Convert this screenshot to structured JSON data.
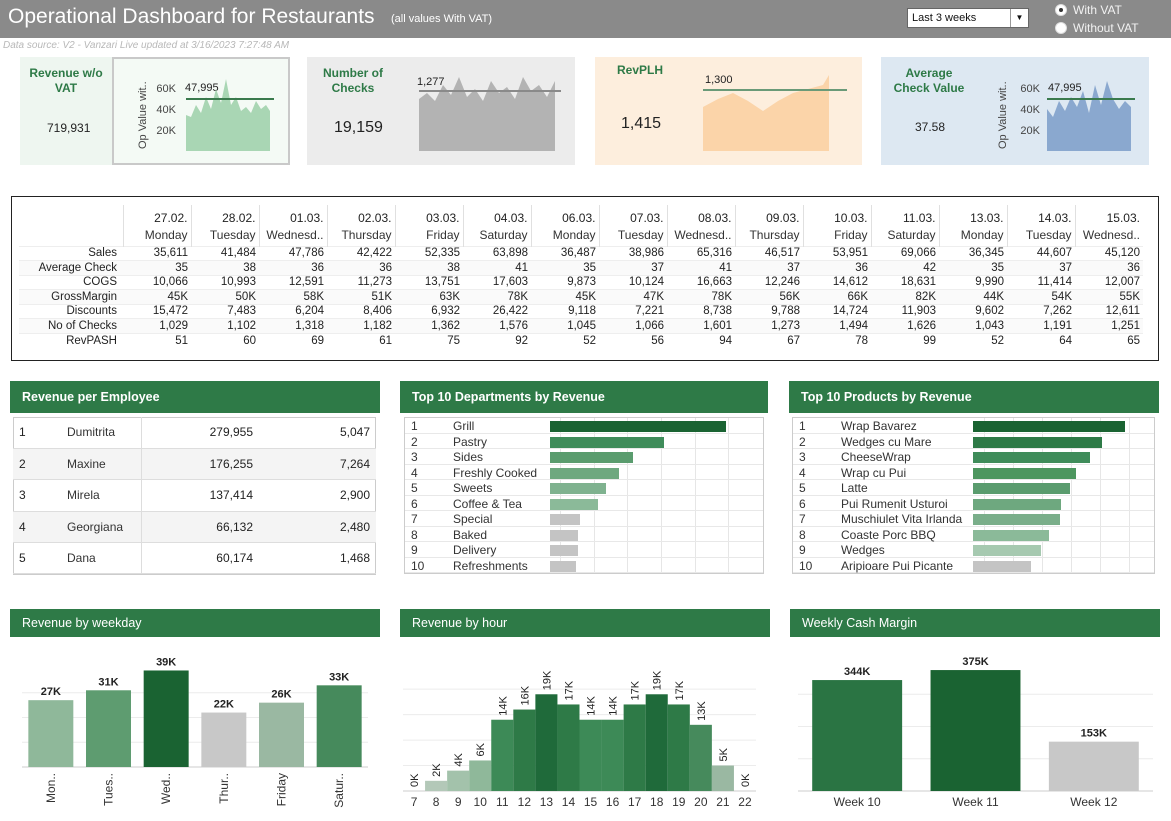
{
  "header": {
    "title": "Operational Dashboard for Restaurants",
    "subtitle": "(all values With VAT)",
    "period_select": "Last 3 weeks",
    "vat_options": [
      {
        "label": "With VAT",
        "selected": true
      },
      {
        "label": "Without VAT",
        "selected": false
      }
    ],
    "data_source": "Data source: V2 - Vanzari Live updated at 3/16/2023 7:27:48 AM"
  },
  "kpis": {
    "revenue": {
      "label": "Revenue w/o VAT",
      "value": "719,931",
      "axis_label": "Op Value wit..",
      "ticks": [
        "60K",
        "40K",
        "20K"
      ],
      "ref_label": "47,995",
      "color": "#a9d6b4"
    },
    "checks": {
      "label": "Number of Checks",
      "value": "19,159",
      "ref_label": "1,277",
      "color": "#b3b3b3"
    },
    "revplh": {
      "label": "RevPLH",
      "value": "1,415",
      "ref_label": "1,300",
      "color": "#fbd4a9"
    },
    "avg_check": {
      "label": "Average Check Value",
      "value": "37.58",
      "axis_label": "Op Value wit..",
      "ticks": [
        "60K",
        "40K",
        "20K"
      ],
      "ref_label": "47,995",
      "color": "#8aa8cf"
    }
  },
  "daily_table": {
    "dates": [
      "27.02.",
      "28.02.",
      "01.03.",
      "02.03.",
      "03.03.",
      "04.03.",
      "06.03.",
      "07.03.",
      "08.03.",
      "09.03.",
      "10.03.",
      "11.03.",
      "13.03.",
      "14.03.",
      "15.03."
    ],
    "days": [
      "Monday",
      "Tuesday",
      "Wednesd..",
      "Thursday",
      "Friday",
      "Saturday",
      "Monday",
      "Tuesday",
      "Wednesd..",
      "Thursday",
      "Friday",
      "Saturday",
      "Monday",
      "Tuesday",
      "Wednesd.."
    ],
    "rows": [
      {
        "label": "Sales",
        "values": [
          "35,611",
          "41,484",
          "47,786",
          "42,422",
          "52,335",
          "63,898",
          "36,487",
          "38,986",
          "65,316",
          "46,517",
          "53,951",
          "69,066",
          "36,345",
          "44,607",
          "45,120"
        ]
      },
      {
        "label": "Average Check",
        "values": [
          "35",
          "38",
          "36",
          "36",
          "38",
          "41",
          "35",
          "37",
          "41",
          "37",
          "36",
          "42",
          "35",
          "37",
          "36"
        ]
      },
      {
        "label": "COGS",
        "values": [
          "10,066",
          "10,993",
          "12,591",
          "11,273",
          "13,751",
          "17,603",
          "9,873",
          "10,124",
          "16,663",
          "12,246",
          "14,612",
          "18,631",
          "9,990",
          "11,414",
          "12,007"
        ]
      },
      {
        "label": "GrossMargin",
        "values": [
          "45K",
          "50K",
          "58K",
          "51K",
          "63K",
          "78K",
          "45K",
          "47K",
          "78K",
          "56K",
          "66K",
          "82K",
          "44K",
          "54K",
          "55K"
        ]
      },
      {
        "label": "Discounts",
        "values": [
          "15,472",
          "7,483",
          "6,204",
          "8,406",
          "6,932",
          "26,422",
          "9,118",
          "7,221",
          "8,738",
          "9,788",
          "14,724",
          "11,903",
          "9,602",
          "7,262",
          "12,611"
        ]
      },
      {
        "label": "No of Checks",
        "values": [
          "1,029",
          "1,102",
          "1,318",
          "1,182",
          "1,362",
          "1,576",
          "1,045",
          "1,066",
          "1,601",
          "1,273",
          "1,494",
          "1,626",
          "1,043",
          "1,191",
          "1,251"
        ]
      },
      {
        "label": "RevPASH",
        "values": [
          "51",
          "60",
          "69",
          "61",
          "75",
          "92",
          "52",
          "56",
          "94",
          "67",
          "78",
          "99",
          "52",
          "64",
          "65"
        ]
      }
    ]
  },
  "revenue_per_employee": {
    "title": "Revenue per Employee",
    "rows": [
      {
        "rank": "1",
        "name": "Dumitrita",
        "revenue": "279,955",
        "count": "5,047"
      },
      {
        "rank": "2",
        "name": "Maxine",
        "revenue": "176,255",
        "count": "7,264"
      },
      {
        "rank": "3",
        "name": "Mirela",
        "revenue": "137,414",
        "count": "2,900"
      },
      {
        "rank": "4",
        "name": "Georgiana",
        "revenue": "66,132",
        "count": "2,480"
      },
      {
        "rank": "5",
        "name": "Dana",
        "revenue": "60,174",
        "count": "1,468"
      }
    ]
  },
  "top_departments": {
    "title": "Top 10 Departments by Revenue",
    "items": [
      {
        "rank": "1",
        "name": "Grill",
        "value": 100,
        "color": "#1a6332"
      },
      {
        "rank": "2",
        "name": "Pastry",
        "value": 65,
        "color": "#3f8c5a"
      },
      {
        "rank": "3",
        "name": "Sides",
        "value": 47,
        "color": "#5a9c6e"
      },
      {
        "rank": "4",
        "name": "Freshly Cooked",
        "value": 39,
        "color": "#6ea87f"
      },
      {
        "rank": "5",
        "name": "Sweets",
        "value": 32,
        "color": "#7fb28f"
      },
      {
        "rank": "6",
        "name": "Coffee & Tea",
        "value": 27,
        "color": "#8bba99"
      },
      {
        "rank": "7",
        "name": "Special",
        "value": 17,
        "color": "#c4c4c4"
      },
      {
        "rank": "8",
        "name": "Baked",
        "value": 16,
        "color": "#c4c4c4"
      },
      {
        "rank": "9",
        "name": "Delivery",
        "value": 16,
        "color": "#c4c4c4"
      },
      {
        "rank": "10",
        "name": "Refreshments",
        "value": 15,
        "color": "#c4c4c4"
      }
    ]
  },
  "top_products": {
    "title": "Top 10 Products by Revenue",
    "items": [
      {
        "rank": "1",
        "name": "Wrap Bavarez",
        "value": 100,
        "color": "#1a6332"
      },
      {
        "rank": "2",
        "name": "Wedges cu Mare",
        "value": 85,
        "color": "#2e7a47"
      },
      {
        "rank": "3",
        "name": "CheeseWrap",
        "value": 77,
        "color": "#3f8c5a"
      },
      {
        "rank": "4",
        "name": "Wrap cu Pui",
        "value": 68,
        "color": "#4d965f"
      },
      {
        "rank": "5",
        "name": "Latte",
        "value": 64,
        "color": "#5a9c6e"
      },
      {
        "rank": "6",
        "name": "Pui Rumenit Usturoi",
        "value": 58,
        "color": "#6ea87f"
      },
      {
        "rank": "7",
        "name": "Muschiulet Vita Irlanda",
        "value": 57,
        "color": "#7aae8a"
      },
      {
        "rank": "8",
        "name": "Coaste Porc BBQ",
        "value": 50,
        "color": "#8bba99"
      },
      {
        "rank": "9",
        "name": "Wedges",
        "value": 45,
        "color": "#a6c9b0"
      },
      {
        "rank": "10",
        "name": "Aripioare Pui Picante",
        "value": 38,
        "color": "#c4c4c4"
      }
    ]
  },
  "chart_data": [
    {
      "id": "weekday",
      "type": "bar",
      "title": "Revenue by weekday",
      "categories": [
        "Mon..",
        "Tues..",
        "Wed..",
        "Thur..",
        "Friday",
        "Satur.."
      ],
      "values": [
        27,
        31,
        39,
        22,
        26,
        33
      ],
      "value_labels": [
        "27K",
        "31K",
        "39K",
        "22K",
        "26K",
        "33K"
      ],
      "colors": [
        "#8fb89a",
        "#5e9c70",
        "#1a6332",
        "#c8c8c8",
        "#9ab8a2",
        "#468a5c"
      ],
      "ylim": [
        0,
        40
      ]
    },
    {
      "id": "hour",
      "type": "bar",
      "title": "Revenue by hour",
      "categories": [
        "7",
        "8",
        "9",
        "10",
        "11",
        "12",
        "13",
        "14",
        "15",
        "16",
        "17",
        "18",
        "19",
        "20",
        "21",
        "22"
      ],
      "values": [
        0,
        2,
        4,
        6,
        14,
        16,
        19,
        17,
        14,
        14,
        17,
        19,
        17,
        13,
        5,
        0
      ],
      "value_labels": [
        "0K",
        "2K",
        "4K",
        "6K",
        "14K",
        "16K",
        "19K",
        "17K",
        "14K",
        "14K",
        "17K",
        "19K",
        "17K",
        "13K",
        "5K",
        "0K"
      ],
      "colors": [
        "#c8c8c8",
        "#b3c8b8",
        "#a3c2ab",
        "#8fb89a",
        "#3d8a57",
        "#2e7a47",
        "#1f6a3a",
        "#2e7a47",
        "#3d8a57",
        "#3d8a57",
        "#2e7a47",
        "#1f6a3a",
        "#2e7a47",
        "#468a5c",
        "#9ab8a2",
        "#c8c8c8"
      ],
      "ylim": [
        0,
        22
      ]
    },
    {
      "id": "weekly",
      "type": "bar",
      "title": "Weekly Cash Margin",
      "categories": [
        "Week 10",
        "Week 11",
        "Week 12"
      ],
      "values": [
        344,
        375,
        153
      ],
      "value_labels": [
        "344K",
        "375K",
        "153K"
      ],
      "colors": [
        "#2a7443",
        "#1a6332",
        "#c8c8c8"
      ],
      "ylim": [
        0,
        400
      ]
    }
  ]
}
